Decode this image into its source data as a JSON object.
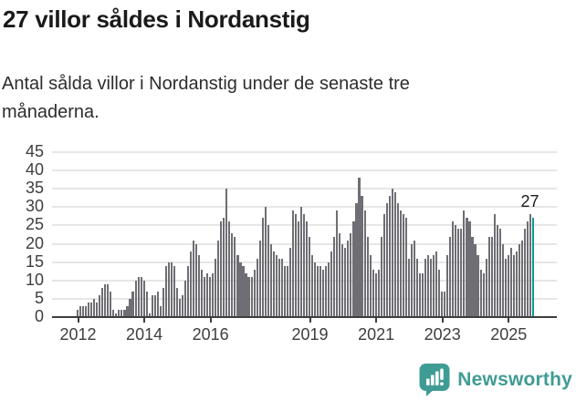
{
  "header": {
    "title": "27 villor såldes i Nordanstig",
    "subtitle": "Antal sålda villor i Nordanstig under de senaste tre månaderna."
  },
  "chart_data": {
    "type": "bar",
    "title": "27 villor såldes i Nordanstig",
    "subtitle": "Antal sålda villor i Nordanstig under de senaste tre månaderna.",
    "unit": "sålda villor per 3 månader",
    "x_start_month": "2012-01",
    "x_end_month": "2025-10",
    "months_per_bar": 1,
    "values": [
      2,
      3,
      3,
      3,
      4,
      4,
      5,
      4,
      6,
      8,
      9,
      9,
      7,
      2,
      1,
      2,
      2,
      2,
      3,
      5,
      7,
      10,
      11,
      11,
      10,
      7,
      1,
      6,
      6,
      7,
      3,
      8,
      14,
      15,
      15,
      14,
      8,
      5,
      6,
      10,
      14,
      18,
      21,
      20,
      17,
      13,
      11,
      12,
      11,
      12,
      16,
      21,
      26,
      27,
      35,
      26,
      23,
      22,
      17,
      15,
      14,
      12,
      11,
      11,
      13,
      16,
      21,
      27,
      30,
      25,
      20,
      18,
      17,
      16,
      16,
      14,
      14,
      19,
      29,
      28,
      26,
      30,
      28,
      26,
      22,
      17,
      15,
      14,
      14,
      13,
      14,
      15,
      18,
      22,
      29,
      23,
      20,
      19,
      21,
      23,
      26,
      31,
      38,
      33,
      29,
      22,
      17,
      13,
      12,
      13,
      22,
      28,
      31,
      33,
      35,
      34,
      31,
      29,
      28,
      27,
      16,
      20,
      21,
      16,
      12,
      12,
      16,
      17,
      16,
      17,
      18,
      13,
      7,
      7,
      17,
      22,
      26,
      25,
      24,
      24,
      29,
      27,
      26,
      22,
      20,
      17,
      13,
      12,
      16,
      22,
      22,
      28,
      25,
      24,
      20,
      16,
      17,
      19,
      17,
      18,
      20,
      21,
      24,
      26,
      28,
      27
    ],
    "highlight_index": 165,
    "highlight_label": "27",
    "y_ticks": [
      0,
      5,
      10,
      15,
      20,
      25,
      30,
      35,
      40,
      45
    ],
    "x_tick_years": [
      2012,
      2014,
      2016,
      2019,
      2021,
      2023,
      2025
    ],
    "x_axis_start_year": 2012,
    "ylim": [
      0,
      45
    ],
    "grid": true,
    "legend": "none",
    "bar_color": "#6e6e74",
    "highlight_color": "#0b9b94",
    "axis_color": "#3d3d3d",
    "grid_color": "#e6e6e6"
  },
  "footer": {
    "brand": "Newsworthy",
    "brand_color": "#3f9c95",
    "logo_icon": "bar-chart-speech-bubble-icon"
  }
}
